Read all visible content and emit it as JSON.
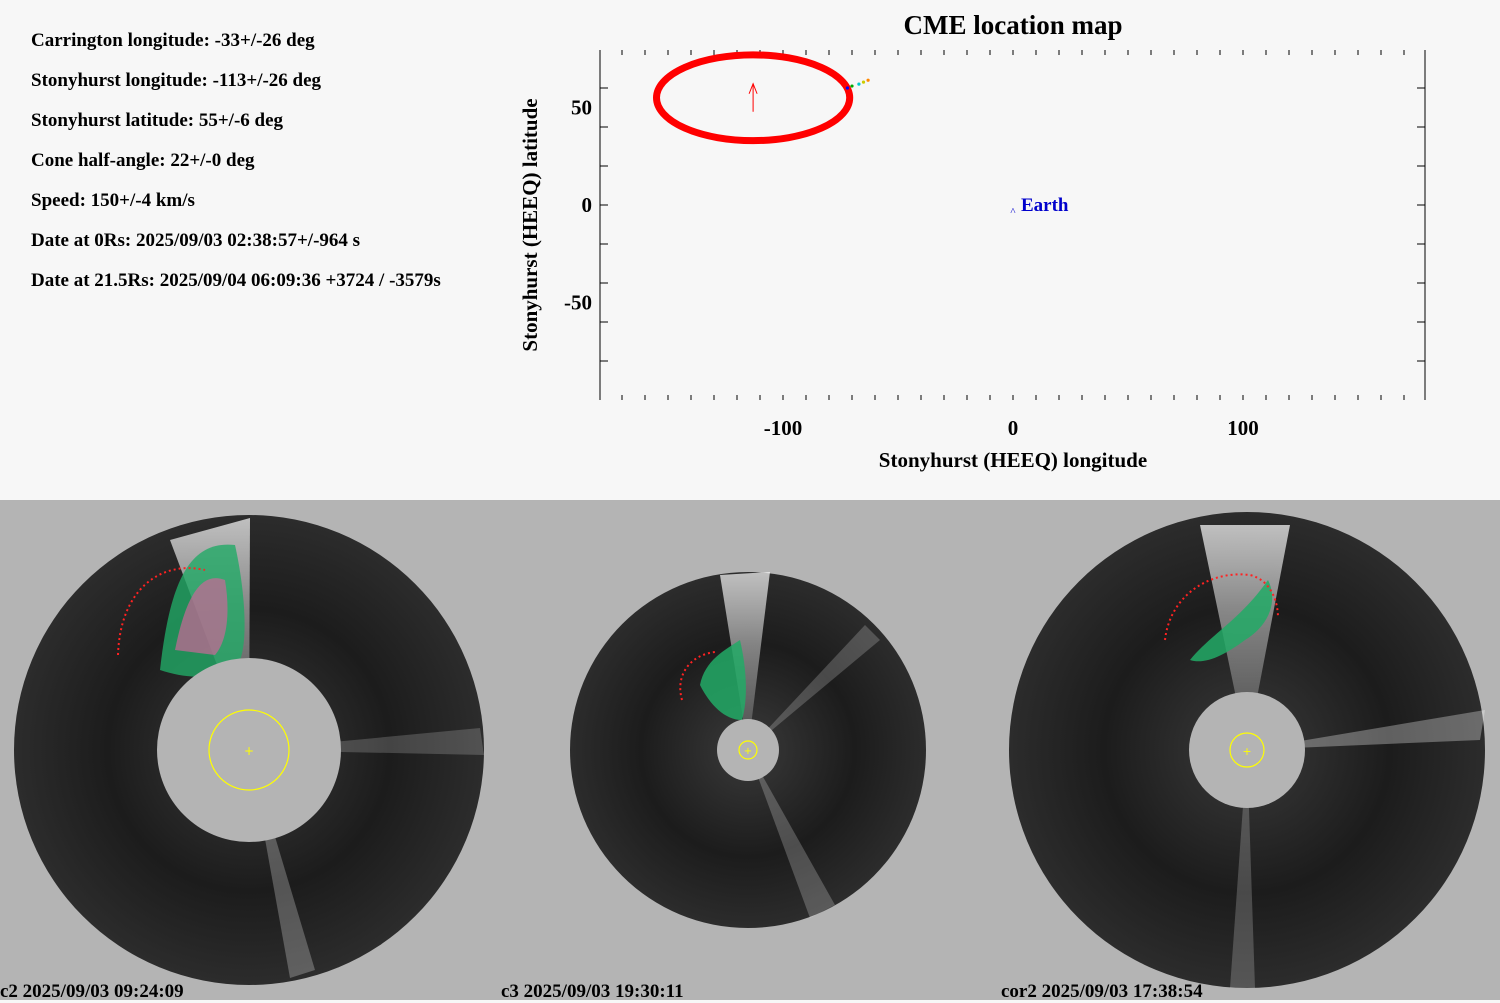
{
  "info": [
    "Carrington longitude: -33+/-26 deg",
    "Stonyhurst longitude: -113+/-26 deg",
    "Stonyhurst latitude: 55+/-6 deg",
    "Cone half-angle: 22+/-0 deg",
    "Speed: 150+/-4 km/s",
    "Date at 0Rs: 2025/09/03 02:38:57+/-964 s",
    "Date at 21.5Rs: 2025/09/04 06:09:36 +3724 / -3579s"
  ],
  "chart_data": {
    "type": "scatter",
    "title": "CME location map",
    "xlabel": "Stonyhurst (HEEQ) longitude",
    "ylabel": "Stonyhurst (HEEQ) latitude",
    "xlim": [
      -180,
      180
    ],
    "ylim": [
      -90,
      90
    ],
    "xticks": [
      -100,
      0,
      100
    ],
    "xtick_labels": [
      "-100",
      "0",
      "100"
    ],
    "yticks": [
      50,
      0,
      -50
    ],
    "ytick_labels": [
      "50",
      "0",
      "-50"
    ],
    "cme": {
      "center_lon": -113,
      "center_lat": 55,
      "lon_halfwidth": 42,
      "lat_halfwidth": 22,
      "color": "#ff0000"
    },
    "earth": {
      "label": "Earth",
      "lon": 0,
      "lat": 0,
      "color": "#0000cc"
    },
    "trail": [
      {
        "lon": -72,
        "lat": 60,
        "color": "#0000ff"
      },
      {
        "lon": -70,
        "lat": 61,
        "color": "#00aa00"
      },
      {
        "lon": -67,
        "lat": 62,
        "color": "#00cccc"
      },
      {
        "lon": -65,
        "lat": 63,
        "color": "#cccc00"
      },
      {
        "lon": -63,
        "lat": 64,
        "color": "#ff8800"
      }
    ]
  },
  "coronagraphs": [
    {
      "caption": "c2 2025/09/03 09:24:09",
      "pa_start": 305,
      "pa_end": 350
    },
    {
      "caption": "c3 2025/09/03 19:30:11",
      "pa_start": 300,
      "pa_end": 360
    },
    {
      "caption": "cor2 2025/09/03 17:38:54",
      "pa_start": 320,
      "pa_end": 45
    }
  ],
  "colors": {
    "top_background": "#f7f7f7",
    "bottom_background": "#b4b4b4",
    "cme_fit": "#ff0000",
    "earth": "#0000cc",
    "sun_disk": "#ffff00"
  }
}
